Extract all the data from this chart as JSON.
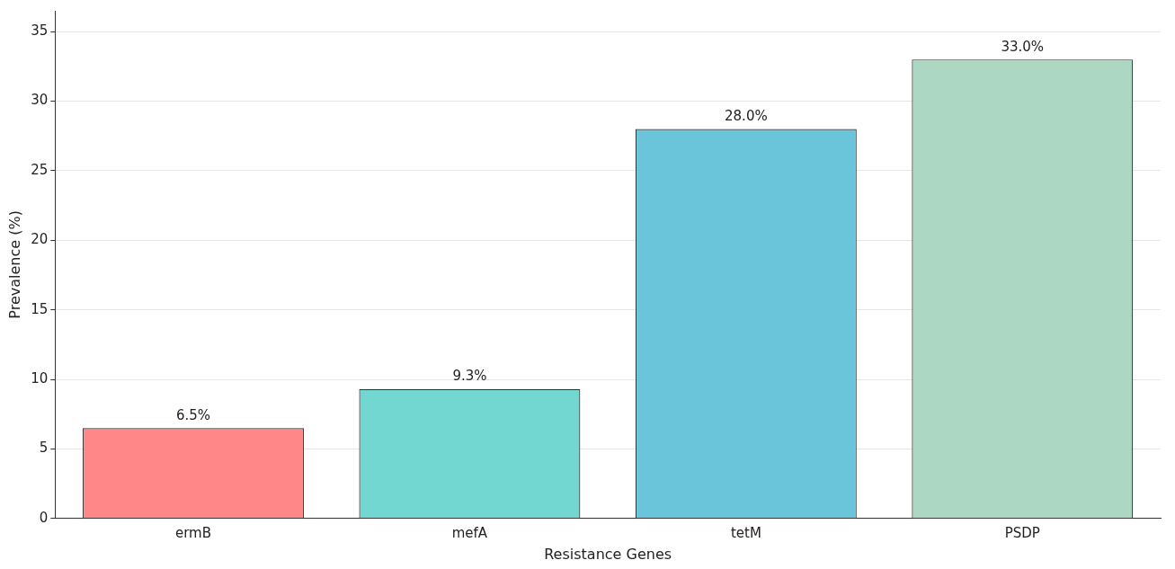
{
  "chart_data": {
    "type": "bar",
    "xlabel": "Resistance Genes",
    "ylabel": "Prevalence (%)",
    "categories": [
      "ermB",
      "mefA",
      "tetM",
      "PSDP"
    ],
    "values": [
      6.5,
      9.3,
      28.0,
      33.0
    ],
    "colors": [
      "#ff8787",
      "#72d7d0",
      "#6ac4da",
      "#abd7c3"
    ],
    "value_labels": [
      "6.5%",
      "9.3%",
      "28.0%",
      "33.0%"
    ],
    "ylim": [
      0,
      36.5
    ],
    "yticks": [
      0,
      5,
      10,
      15,
      20,
      25,
      30,
      35
    ],
    "grid": "y",
    "legend": false
  }
}
